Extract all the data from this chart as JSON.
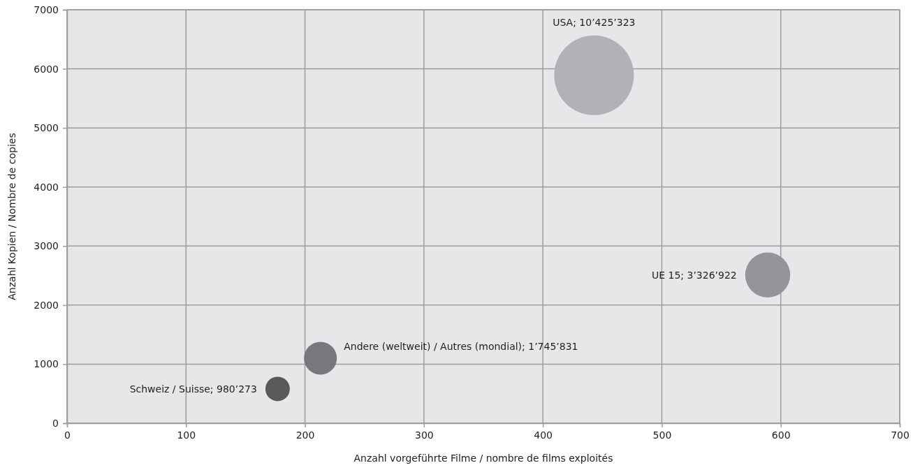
{
  "chart_data": {
    "type": "bubble",
    "xlabel": "Anzahl vorgeführte Filme / nombre de films exploités",
    "ylabel": "Anzahl Kopien / Nombre de copies",
    "x": [
      443,
      589,
      213,
      177
    ],
    "values": [
      5890,
      2510,
      1100,
      580
    ],
    "sizes": [
      1,
      0.32,
      0.17,
      0.094
    ],
    "colors": [
      "#b1b2b5",
      "#939598",
      "#77787b",
      "#58595b"
    ],
    "value_labels": [
      "USA; 10’425’323",
      "UE 15; 3’326’922",
      "Andere (weltweit) / Autres (mondial); 1’745’831",
      "Schweiz / Suisse; 980’273"
    ],
    "xlim": [
      0,
      700
    ],
    "xticks": [
      0,
      100,
      200,
      300,
      400,
      500,
      600,
      700
    ],
    "ylim": [
      0,
      7000
    ],
    "yticks": [
      0,
      1000,
      2000,
      3000,
      4000,
      5000,
      6000,
      7000
    ],
    "grid": true
  }
}
